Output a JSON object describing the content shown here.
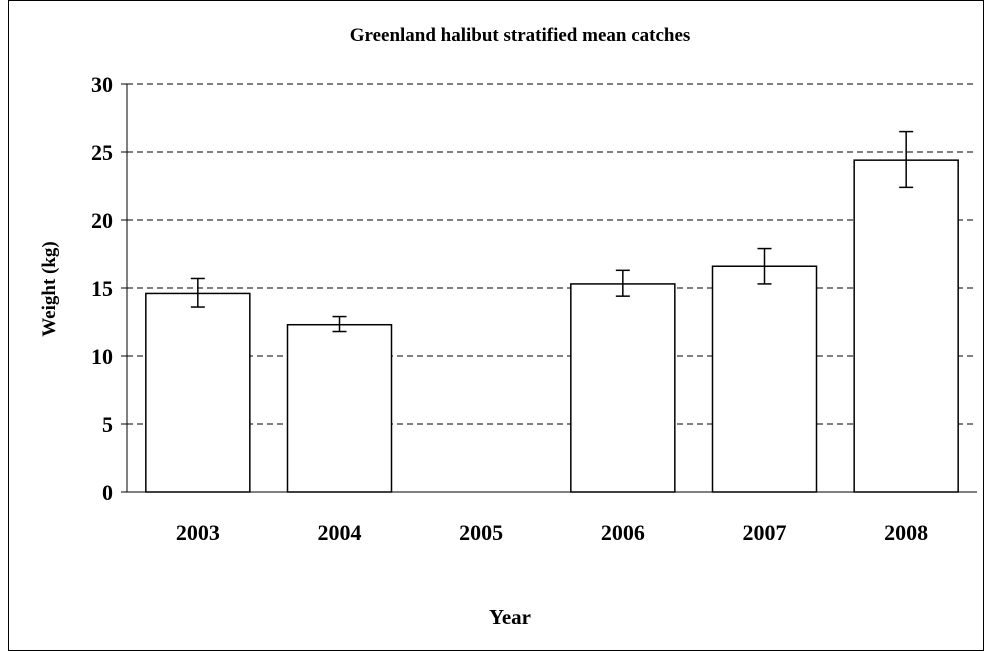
{
  "chart_data": {
    "type": "bar",
    "title": "Greenland halibut stratified mean catches",
    "xlabel": "Year",
    "ylabel": "Weight (kg)",
    "categories": [
      "2003",
      "2004",
      "2005",
      "2006",
      "2007",
      "2008"
    ],
    "values": [
      14.6,
      12.3,
      null,
      15.3,
      16.6,
      24.4
    ],
    "error_low": [
      13.6,
      11.8,
      null,
      14.4,
      15.3,
      22.4
    ],
    "error_high": [
      15.7,
      12.9,
      null,
      16.3,
      17.9,
      26.5
    ],
    "ylim": [
      0,
      30
    ],
    "yticks": [
      0,
      5,
      10,
      15,
      20,
      25,
      30
    ],
    "grid": true,
    "bar_fill": "#ffffff",
    "bar_stroke": "#000000"
  }
}
